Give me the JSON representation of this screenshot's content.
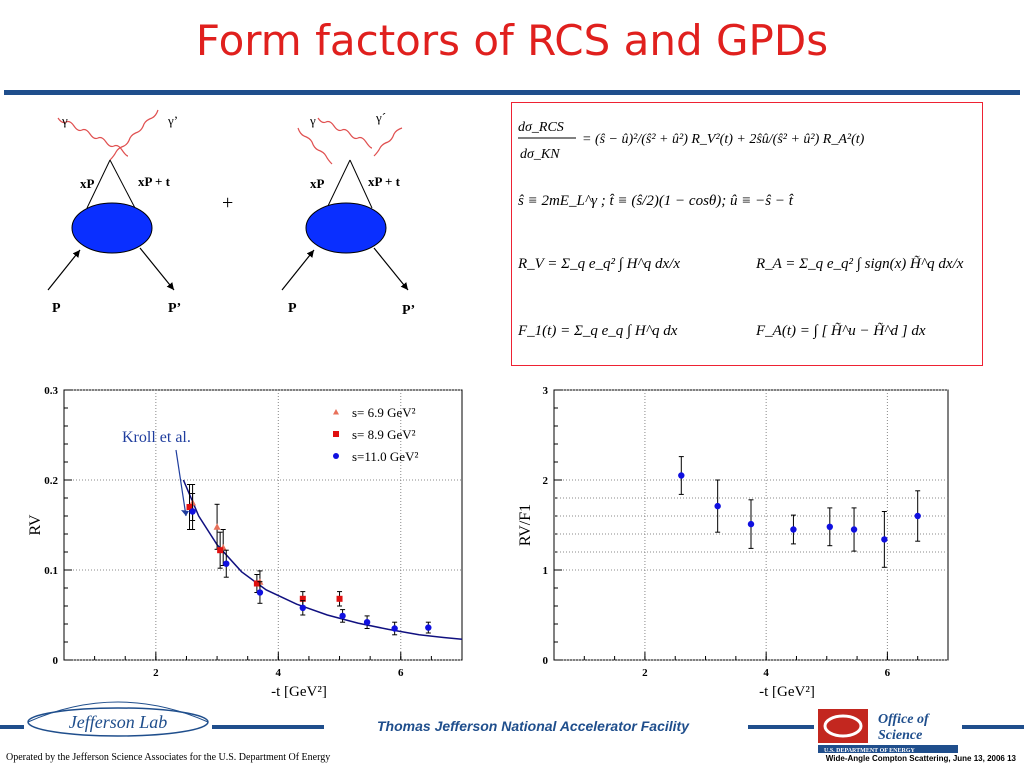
{
  "slide": {
    "title": "Form factors of RCS and GPDs",
    "footer_center": "Thomas Jefferson National Accelerator Facility",
    "footer_left_logo": "Jefferson Lab",
    "footer_right_logo_line1": "Office of",
    "footer_right_logo_line2": "Science",
    "footer_right_logo_line3": "U.S. DEPARTMENT OF ENERGY",
    "operator": "Operated by the Jefferson Science Associates for the U.S. Department Of Energy",
    "slide_info": "Wide-Angle Compton Scattering, June 13, 2006 13"
  },
  "diagram": {
    "left": {
      "photon_in": "γ",
      "photon_out": "γ’",
      "parton_in": "xP",
      "parton_out": "xP + t",
      "proton_in": "P",
      "proton_out": "P’"
    },
    "right": {
      "photon_in": "γ",
      "photon_out": "γ´",
      "parton_in": "xP",
      "parton_out": "xP + t",
      "proton_in": "P",
      "proton_out": "P’"
    },
    "plus": "+"
  },
  "formulas": {
    "line1_lhs_num": "dσ_RCS",
    "line1_lhs_den": "dσ_KN",
    "line1_rhs": "= (ŝ − û)²/(ŝ² + û²) R_V²(t) + 2ŝû/(ŝ² + û²) R_A²(t)",
    "line2": "ŝ ≡ 2mE_L^γ ;   t̂ ≡ (ŝ/2)(1 − cosθ);   û ≡ −ŝ − t̂",
    "line3_left": "R_V = Σ_q e_q² ∫ H^q dx/x",
    "line3_right": "R_A = Σ_q e_q² ∫ sign(x) H̃^q dx/x",
    "line4_left": "F_1(t) = Σ_q e_q ∫ H^q dx",
    "line4_right": "F_A(t) = ∫ [ H̃^u − H̃^d ] dx"
  },
  "chart_data": [
    {
      "type": "scatter",
      "title": "",
      "xlabel": "-t [GeV²]",
      "ylabel": "R_V",
      "xlim": [
        0.5,
        7
      ],
      "ylim": [
        0,
        0.3
      ],
      "xticks": [
        "2",
        "4",
        "6"
      ],
      "yticks": [
        "0",
        "0.1",
        "0.2",
        "0.3"
      ],
      "grid": true,
      "legend_position": "top-right",
      "annotation": "Kroll et al.",
      "series": [
        {
          "name": "s= 6.9 GeV²",
          "marker": "triangle",
          "color": "#e8705a",
          "x": [
            2.6,
            3.0,
            3.1,
            3.7
          ],
          "y": [
            0.175,
            0.148,
            0.125,
            0.087
          ],
          "err": [
            0.02,
            0.025,
            0.02,
            0.012
          ]
        },
        {
          "name": "s= 8.9 GeV²",
          "marker": "square",
          "color": "#e01010",
          "x": [
            2.55,
            3.05,
            3.65,
            4.4,
            5.0
          ],
          "y": [
            0.17,
            0.122,
            0.085,
            0.068,
            0.068
          ],
          "err": [
            0.025,
            0.02,
            0.01,
            0.008,
            0.008
          ]
        },
        {
          "name": "s=11.0 GeV²",
          "marker": "circle",
          "color": "#1010e0",
          "x": [
            2.6,
            3.15,
            3.7,
            4.4,
            5.05,
            5.45,
            5.9,
            6.45
          ],
          "y": [
            0.165,
            0.107,
            0.075,
            0.058,
            0.049,
            0.042,
            0.035,
            0.036
          ],
          "err": [
            0.02,
            0.015,
            0.012,
            0.008,
            0.007,
            0.007,
            0.007,
            0.006
          ]
        }
      ],
      "curve": {
        "name": "Kroll et al.",
        "x": [
          2.45,
          2.7,
          3.0,
          3.4,
          3.8,
          4.3,
          4.8,
          5.3,
          5.8,
          6.3,
          6.7,
          7.0
        ],
        "y": [
          0.2,
          0.16,
          0.128,
          0.098,
          0.078,
          0.062,
          0.05,
          0.041,
          0.034,
          0.028,
          0.025,
          0.023
        ]
      }
    },
    {
      "type": "scatter",
      "title": "",
      "xlabel": "-t [GeV²]",
      "ylabel": "R_V/F_1",
      "xlim": [
        0.5,
        7
      ],
      "ylim": [
        0,
        3
      ],
      "xticks": [
        "2",
        "4",
        "6"
      ],
      "yticks": [
        "0",
        "1",
        "2",
        "3"
      ],
      "grid": true,
      "series": [
        {
          "name": "",
          "marker": "circle",
          "color": "#1010e0",
          "x": [
            2.6,
            3.2,
            3.75,
            4.45,
            5.05,
            5.45,
            5.95,
            6.5
          ],
          "y": [
            2.05,
            1.71,
            1.51,
            1.45,
            1.48,
            1.45,
            1.34,
            1.6
          ],
          "err": [
            0.21,
            0.29,
            0.27,
            0.16,
            0.21,
            0.24,
            0.31,
            0.28
          ]
        }
      ]
    }
  ]
}
